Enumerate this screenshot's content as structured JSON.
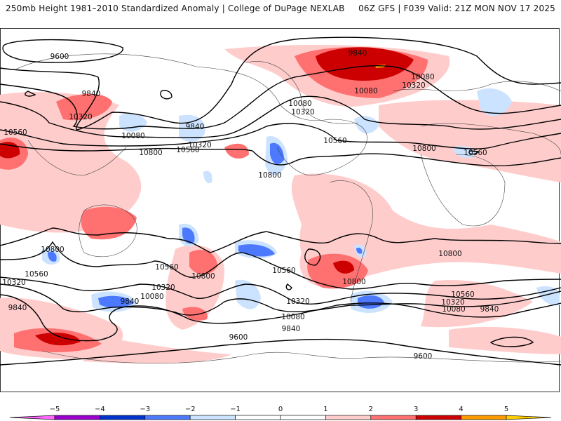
{
  "header": {
    "title_left": "250mb Height 1981–2010 Standardized Anomaly | College of DuPage NEXLAB",
    "title_right": "06Z GFS | F039 Valid: 21Z MON NOV 17 2025"
  },
  "map": {
    "projection": "global cylindrical",
    "variable": "250mb geopotential height (m)",
    "shading_variable": "standardized anomaly (sigma)",
    "contour_interval_m": 240,
    "contour_labels": [
      {
        "text": "9600",
        "region": "North Pacific / Siberia"
      },
      {
        "text": "9840",
        "region": "Northern Siberia"
      },
      {
        "text": "10320",
        "region": "Central Asia"
      },
      {
        "text": "10560",
        "region": "West Asia edge"
      },
      {
        "text": "10080",
        "region": "NW Pacific"
      },
      {
        "text": "10800",
        "region": "Subtropical Pacific"
      },
      {
        "text": "9840",
        "region": "Gulf of Alaska"
      },
      {
        "text": "10320",
        "region": "NE Pacific"
      },
      {
        "text": "10560",
        "region": "NE Pacific"
      },
      {
        "text": "10800",
        "region": "Off California"
      },
      {
        "text": "9840",
        "region": "Greenland / Baffin"
      },
      {
        "text": "10080",
        "region": "Hudson Bay"
      },
      {
        "text": "10320",
        "region": "Greenland"
      },
      {
        "text": "10080",
        "region": "Greenland East"
      },
      {
        "text": "10080",
        "region": "Western Canada"
      },
      {
        "text": "10320",
        "region": "Western Canada"
      },
      {
        "text": "10560",
        "region": "Eastern US"
      },
      {
        "text": "10800",
        "region": "Central Atlantic"
      },
      {
        "text": "10560",
        "region": "Iberia"
      },
      {
        "text": "10800",
        "region": "Indian Ocean (west)"
      },
      {
        "text": "10560",
        "region": "South Indian Ocean"
      },
      {
        "text": "10320",
        "region": "South Indian Ocean"
      },
      {
        "text": "9840",
        "region": "Southern Ocean"
      },
      {
        "text": "9840",
        "region": "South of Australia"
      },
      {
        "text": "10080",
        "region": "Tasman Sea"
      },
      {
        "text": "10320",
        "region": "New Zealand"
      },
      {
        "text": "10560",
        "region": "South Pacific"
      },
      {
        "text": "10800",
        "region": "South Pacific"
      },
      {
        "text": "10560",
        "region": "SE Pacific"
      },
      {
        "text": "10800",
        "region": "Off Chile"
      },
      {
        "text": "10320",
        "region": "Southern Ocean"
      },
      {
        "text": "10080",
        "region": "Drake Passage"
      },
      {
        "text": "9840",
        "region": "Southern Ocean"
      },
      {
        "text": "10800",
        "region": "South Atlantic"
      },
      {
        "text": "10560",
        "region": "South Atlantic"
      },
      {
        "text": "10320",
        "region": "South Atlantic"
      },
      {
        "text": "10080",
        "region": "South Atlantic"
      },
      {
        "text": "9840",
        "region": "South Atlantic"
      },
      {
        "text": "9600",
        "region": "Antarctic (Pacific)"
      },
      {
        "text": "9600",
        "region": "Antarctic (Atlantic)"
      }
    ]
  },
  "colorbar": {
    "ticks": [
      "−5",
      "−4",
      "−3",
      "−2",
      "−1",
      "0",
      "1",
      "2",
      "3",
      "4",
      "5"
    ],
    "colors": {
      "below_-5": "#ff66ff",
      "-5_-4": "#9900cc",
      "-4_-3": "#0033cc",
      "-3_-2": "#4d79ff",
      "-2_-1": "#cce3ff",
      "-1_0": "#ffffff",
      "0_1": "#ffffff",
      "1_2": "#ffcccc",
      "2_3": "#ff7070",
      "3_4": "#cc0000",
      "4_5": "#ff9900",
      "above_5": "#ffcc00"
    }
  },
  "chart_data": {
    "type": "heatmap",
    "title": "250mb Height 1981–2010 Standardized Anomaly | College of DuPage NEXLAB",
    "subtitle": "06Z GFS | F039 Valid: 21Z MON NOV 17 2025",
    "colorbar_range": [
      -5,
      5
    ],
    "colorbar_ticks": [
      -5,
      -4,
      -3,
      -2,
      -1,
      0,
      1,
      2,
      3,
      4,
      5
    ],
    "contour_levels_m": [
      9600,
      9840,
      10080,
      10320,
      10560,
      10800
    ],
    "notable_features": [
      {
        "region": "Greenland / Baffin Bay",
        "anomaly_sigma": "+3 to +4, local >4"
      },
      {
        "region": "Southern Indian Ocean south of Australia",
        "anomaly_sigma": "+3 to +4"
      },
      {
        "region": "SE Pacific off Chile",
        "anomaly_sigma": "+3 to +4"
      },
      {
        "region": "Tibet / West Asia",
        "anomaly_sigma": "+3 to +4"
      },
      {
        "region": "Off California",
        "anomaly_sigma": "-2 to -3"
      },
      {
        "region": "Off Argentina / Drake Passage",
        "anomaly_sigma": "-2 to -3"
      },
      {
        "region": "Tasman Sea",
        "anomaly_sigma": "-2 to -3"
      },
      {
        "region": "Central South Pacific",
        "anomaly_sigma": "-2 to -3"
      },
      {
        "region": "Scandinavia",
        "anomaly_sigma": "-1 to -2"
      }
    ]
  }
}
